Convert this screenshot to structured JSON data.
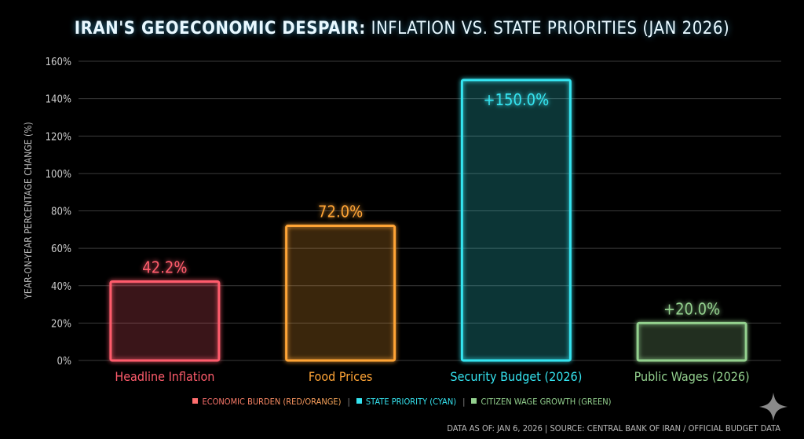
{
  "chart_data": {
    "type": "bar",
    "title_bold": "IRAN'S GEOECONOMIC DESPAIR:",
    "title_rest": "INFLATION VS. STATE PRIORITIES (JAN 2026)",
    "ylabel": "YEAR-ON-YEAR PERCENTAGE CHANGE (%)",
    "xlabel": "",
    "ylim": [
      0,
      160
    ],
    "yticks": [
      0,
      20,
      40,
      60,
      80,
      100,
      120,
      140,
      160
    ],
    "ytick_labels": [
      "0%",
      "20%",
      "40%",
      "60%",
      "80%",
      "100%",
      "120%",
      "140%",
      "160%"
    ],
    "grid": true,
    "categories": [
      "Headline Inflation",
      "Food Prices",
      "Security Budget (2026)",
      "Public Wages (2026)"
    ],
    "values": [
      42.2,
      72.0,
      150.0,
      20.0
    ],
    "data_labels": [
      "42.2%",
      "72.0%",
      "+150.0%",
      "+20.0%"
    ],
    "colors": [
      "#ff5c6c",
      "#ffa436",
      "#35e4f0",
      "#93d08e"
    ],
    "legend": [
      {
        "label": "ECONOMIC BURDEN (RED/ORANGE)",
        "color": "#ff6f6f"
      },
      {
        "label": "STATE PRIORITY (CYAN)",
        "color": "#35e4f0"
      },
      {
        "label": "CITIZEN WAGE GROWTH (GREEN)",
        "color": "#93d08e"
      }
    ],
    "legend_position": "bottom"
  },
  "footer": "DATA AS OF: JAN 6, 2026 | SOURCE: CENTRAL BANK OF IRAN / OFFICIAL BUDGET DATA"
}
